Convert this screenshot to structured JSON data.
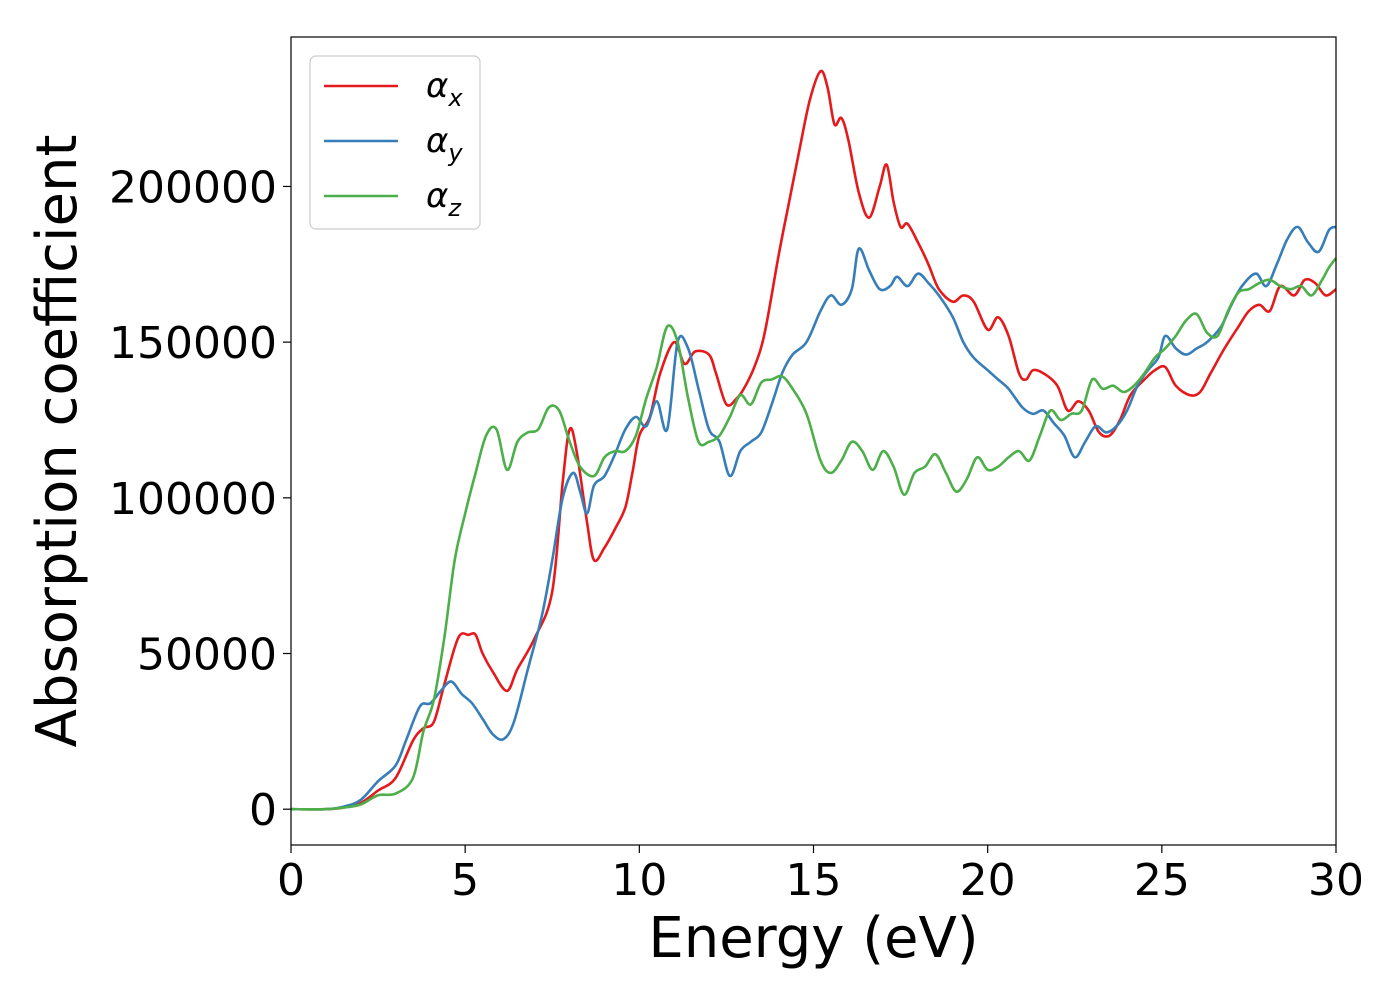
{
  "chart_data": {
    "type": "line",
    "title": "",
    "xlabel": "Energy (eV)",
    "ylabel": "Absorption coefficient",
    "xlim": [
      0,
      30
    ],
    "ylim": [
      -11500,
      248000
    ],
    "xticks": [
      0,
      5,
      10,
      15,
      20,
      25,
      30
    ],
    "xtick_labels": [
      "0",
      "5",
      "10",
      "15",
      "20",
      "25",
      "30"
    ],
    "yticks": [
      0,
      50000,
      100000,
      150000,
      200000
    ],
    "ytick_labels": [
      "0",
      "50000",
      "100000",
      "150000",
      "200000"
    ],
    "grid": false,
    "legend_position": "top-left",
    "series": [
      {
        "name": "α",
        "subscript": "x",
        "color": "#e41a1c",
        "x": [
          0,
          1,
          1.5,
          2,
          2.5,
          3,
          3.5,
          3.8,
          4.1,
          4.4,
          4.8,
          5.1,
          5.3,
          5.5,
          5.8,
          6.2,
          6.5,
          7,
          7.5,
          7.8,
          8.0,
          8.2,
          8.5,
          8.7,
          9.0,
          9.3,
          9.6,
          9.8,
          10.0,
          10.3,
          10.6,
          11.0,
          11.3,
          11.6,
          12.0,
          12.2,
          12.5,
          12.8,
          13.0,
          13.3,
          13.6,
          14.0,
          14.3,
          14.6,
          14.9,
          15.2,
          15.4,
          15.6,
          15.8,
          16.0,
          16.3,
          16.6,
          16.9,
          17.1,
          17.3,
          17.5,
          17.7,
          18.0,
          18.3,
          18.6,
          19.0,
          19.3,
          19.6,
          20.0,
          20.3,
          20.6,
          20.9,
          21.1,
          21.3,
          21.6,
          22.0,
          22.3,
          22.6,
          22.9,
          23.2,
          23.5,
          23.8,
          24.1,
          24.5,
          24.8,
          25.1,
          25.4,
          25.8,
          26.1,
          26.4,
          26.8,
          27.2,
          27.5,
          27.8,
          28.1,
          28.4,
          28.8,
          29.1,
          29.4,
          29.7,
          30.0
        ],
        "y": [
          0,
          0,
          500,
          2000,
          6000,
          10000,
          22000,
          26000,
          28000,
          40000,
          55000,
          56000,
          56000,
          50000,
          44000,
          38000,
          45000,
          55000,
          70000,
          105000,
          122000,
          115000,
          92000,
          80000,
          84000,
          90000,
          97000,
          108000,
          120000,
          126000,
          140000,
          150000,
          143000,
          147000,
          146000,
          140000,
          130000,
          132000,
          135000,
          142000,
          153000,
          178000,
          195000,
          212000,
          228000,
          237000,
          232000,
          220000,
          222000,
          215000,
          198000,
          190000,
          200000,
          207000,
          195000,
          187000,
          188000,
          182000,
          175000,
          167000,
          163000,
          165000,
          163000,
          154000,
          158000,
          152000,
          140000,
          138000,
          141000,
          140000,
          136000,
          128000,
          131000,
          128000,
          121000,
          120000,
          125000,
          133000,
          138000,
          141000,
          142000,
          136000,
          133000,
          134000,
          140000,
          148000,
          155000,
          160000,
          162000,
          160000,
          168000,
          165000,
          170000,
          169000,
          165000,
          167000
        ]
      },
      {
        "name": "α",
        "subscript": "y",
        "color": "#377eb8",
        "x": [
          0,
          1,
          1.5,
          2,
          2.5,
          3,
          3.3,
          3.7,
          4.0,
          4.3,
          4.6,
          4.9,
          5.2,
          5.5,
          5.8,
          6.1,
          6.4,
          6.8,
          7.2,
          7.5,
          7.8,
          8.1,
          8.3,
          8.5,
          8.7,
          9.0,
          9.3,
          9.6,
          9.9,
          10.2,
          10.5,
          10.8,
          11.1,
          11.4,
          11.7,
          12.0,
          12.3,
          12.6,
          12.9,
          13.2,
          13.5,
          13.8,
          14.1,
          14.4,
          14.8,
          15.2,
          15.5,
          15.8,
          16.1,
          16.3,
          16.6,
          16.9,
          17.2,
          17.4,
          17.7,
          18.0,
          18.3,
          18.6,
          19.0,
          19.3,
          19.6,
          20.0,
          20.3,
          20.6,
          21.0,
          21.3,
          21.6,
          21.9,
          22.2,
          22.5,
          22.8,
          23.1,
          23.4,
          23.7,
          24.0,
          24.3,
          24.6,
          24.9,
          25.1,
          25.4,
          25.7,
          26.0,
          26.3,
          26.7,
          27.0,
          27.3,
          27.7,
          28.0,
          28.3,
          28.6,
          28.9,
          29.2,
          29.5,
          29.8,
          30.0
        ],
        "y": [
          0,
          0,
          800,
          3000,
          9000,
          14000,
          22000,
          33000,
          34000,
          38000,
          41000,
          37000,
          34000,
          29000,
          24000,
          22500,
          28000,
          45000,
          62000,
          80000,
          100000,
          108000,
          102000,
          95000,
          104000,
          107000,
          114000,
          122000,
          126000,
          123000,
          131000,
          122000,
          150000,
          148000,
          135000,
          122000,
          118000,
          107000,
          115000,
          118000,
          121000,
          130000,
          140000,
          146000,
          150000,
          160000,
          165000,
          162000,
          167000,
          180000,
          173000,
          167000,
          168000,
          171000,
          168000,
          172000,
          169000,
          165000,
          158000,
          150000,
          145000,
          141000,
          138000,
          135000,
          129000,
          127000,
          128000,
          124000,
          120000,
          113000,
          118000,
          123000,
          121000,
          123000,
          128000,
          136000,
          141000,
          145000,
          152000,
          148000,
          146000,
          148000,
          150000,
          155000,
          162000,
          168000,
          172000,
          168000,
          175000,
          183000,
          187000,
          182000,
          179000,
          186000,
          187000
        ]
      },
      {
        "name": "α",
        "subscript": "z",
        "color": "#4daf4a",
        "x": [
          0,
          1,
          1.5,
          2,
          2.5,
          3,
          3.5,
          3.8,
          4.1,
          4.4,
          4.7,
          5.0,
          5.3,
          5.6,
          5.9,
          6.2,
          6.5,
          6.8,
          7.1,
          7.4,
          7.7,
          8.0,
          8.3,
          8.7,
          9.0,
          9.3,
          9.6,
          9.9,
          10.2,
          10.5,
          10.8,
          11.1,
          11.4,
          11.7,
          12.0,
          12.3,
          12.6,
          12.9,
          13.2,
          13.5,
          13.8,
          14.1,
          14.4,
          14.8,
          15.2,
          15.5,
          15.8,
          16.1,
          16.4,
          16.7,
          17.0,
          17.3,
          17.6,
          17.9,
          18.2,
          18.5,
          18.8,
          19.1,
          19.4,
          19.7,
          20.0,
          20.3,
          20.6,
          20.9,
          21.2,
          21.5,
          21.8,
          22.1,
          22.4,
          22.7,
          23.0,
          23.3,
          23.6,
          23.9,
          24.2,
          24.5,
          24.8,
          25.1,
          25.4,
          25.7,
          26.0,
          26.3,
          26.6,
          26.9,
          27.2,
          27.5,
          27.8,
          28.1,
          28.4,
          28.7,
          29.0,
          29.3,
          29.6,
          29.8,
          30.0
        ],
        "y": [
          0,
          0,
          500,
          1500,
          4500,
          5000,
          10000,
          25000,
          35000,
          55000,
          80000,
          95000,
          108000,
          120000,
          122000,
          109000,
          118000,
          121000,
          122000,
          129000,
          128000,
          118000,
          110000,
          107000,
          113000,
          115000,
          115000,
          120000,
          132000,
          142000,
          155000,
          150000,
          132000,
          118000,
          118000,
          120000,
          126000,
          133000,
          130000,
          137000,
          138000,
          139000,
          135000,
          127000,
          112000,
          108000,
          112000,
          118000,
          115000,
          109000,
          115000,
          110000,
          101000,
          108000,
          110000,
          114000,
          108000,
          102000,
          106000,
          113000,
          109000,
          110000,
          113000,
          115000,
          112000,
          120000,
          128000,
          125000,
          127000,
          128000,
          138000,
          135000,
          136000,
          134000,
          136000,
          140000,
          145000,
          148000,
          152000,
          157000,
          159000,
          153000,
          152000,
          160000,
          166000,
          167000,
          169000,
          170000,
          168000,
          167000,
          168000,
          165000,
          170000,
          174000,
          177000
        ]
      }
    ]
  }
}
